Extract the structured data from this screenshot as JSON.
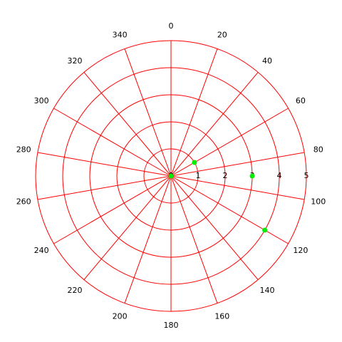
{
  "chart_data": {
    "type": "polar",
    "theta_zero": "top",
    "theta_direction": "clockwise",
    "thetaticks": [
      0,
      20,
      40,
      60,
      80,
      100,
      120,
      140,
      160,
      180,
      200,
      220,
      240,
      260,
      280,
      300,
      320,
      340
    ],
    "rlim": [
      0,
      5
    ],
    "rticks": [
      0,
      1,
      2,
      3,
      4,
      5
    ],
    "grid": true,
    "grid_color": "#ff0000",
    "series": [
      {
        "color": "#00ee00",
        "theta": [
          0,
          60,
          90,
          120
        ],
        "r": [
          0,
          1,
          3,
          4
        ]
      }
    ]
  }
}
